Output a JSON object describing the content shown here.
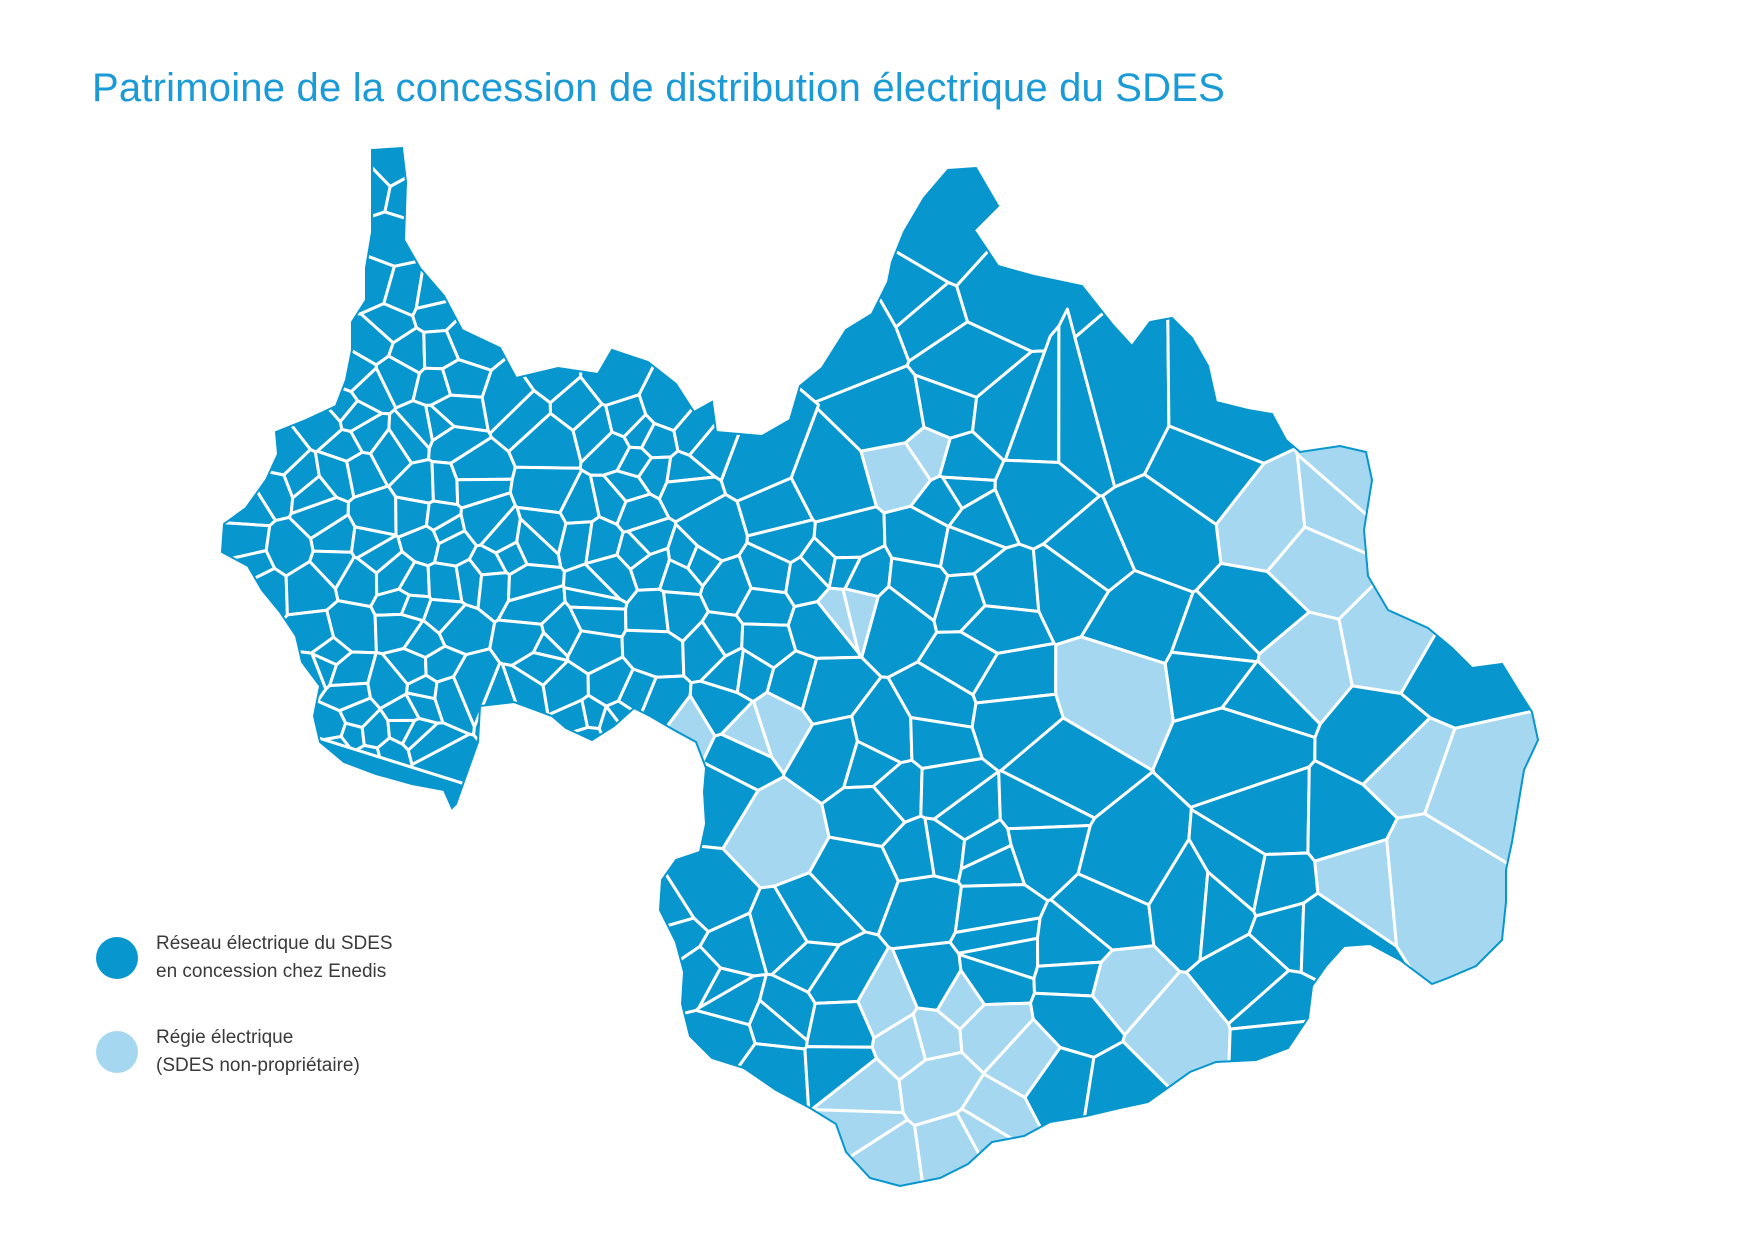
{
  "title": "Patrimoine de la concession de distribution électrique du SDES",
  "colors": {
    "title": "#1a9ad6",
    "enedis_concession": "#0796ce",
    "regie": "#a5d8f0",
    "boundary": "#ffffff",
    "legend_text": "#3a3a3a"
  },
  "legend": {
    "items": [
      {
        "key": "enedis_concession",
        "line1": "Réseau électrique du SDES",
        "line2": "en concession chez Enedis"
      },
      {
        "key": "regie",
        "line1": "Régie électrique",
        "line2": "(SDES non-propriétaire)"
      }
    ]
  }
}
